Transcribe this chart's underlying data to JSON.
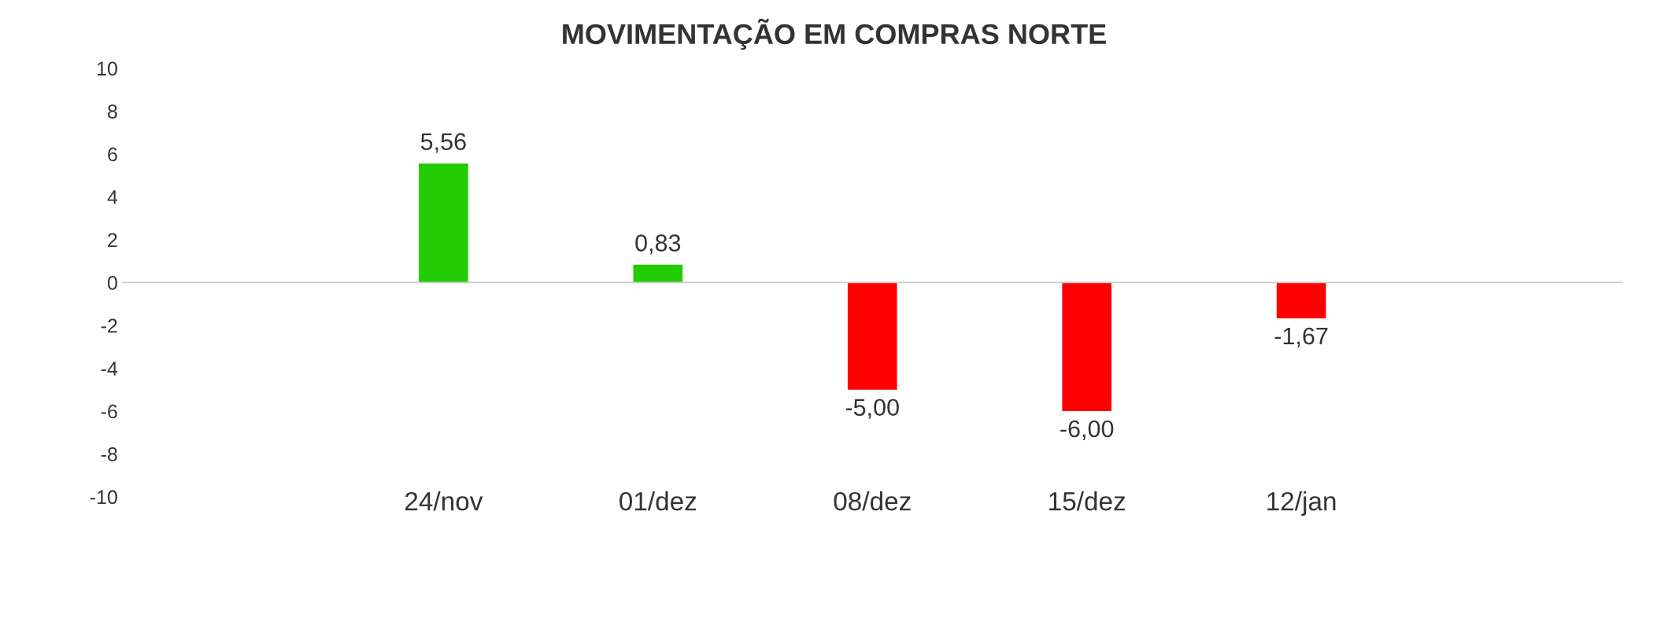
{
  "chart_data": {
    "type": "bar",
    "title": "MOVIMENTAÇÃO EM COMPRAS NORTE",
    "categories": [
      null,
      "24/nov",
      "01/dez",
      "08/dez",
      "15/dez",
      "12/jan",
      null
    ],
    "values": [
      null,
      5.56,
      0.83,
      -5.0,
      -6.0,
      -1.67,
      null
    ],
    "colors": [
      "#22cc00",
      "#22cc00",
      "#22cc00",
      "#ff0000",
      "#ff0000",
      "#ff0000",
      "#ff0000"
    ],
    "value_labels": [
      null,
      "5,56",
      "0,83",
      "-5,00",
      "-6,00",
      "-1,67",
      null
    ],
    "ylim": [
      -10,
      10
    ],
    "yticks": [
      -10,
      -8,
      -6,
      -4,
      -2,
      0,
      2,
      4,
      6,
      8,
      10
    ],
    "ref_lines": [
      {
        "axis": "y",
        "value": 0,
        "color": "#cccccc"
      }
    ],
    "legend": false
  }
}
